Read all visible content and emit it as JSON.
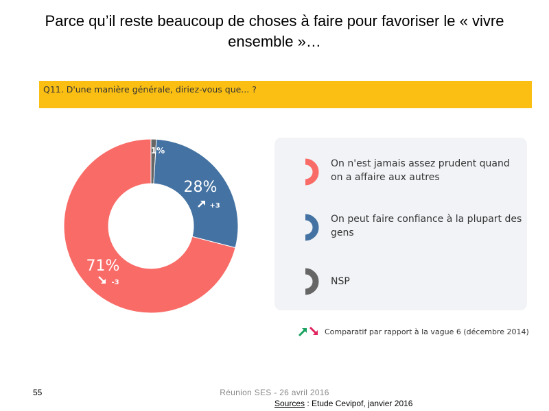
{
  "slide": {
    "title": "Parce qu’il reste beaucoup de choses à faire pour favoriser le « vivre ensemble »…",
    "question": "Q11. D'une manière générale, diriez-vous que... ?"
  },
  "chart_data": {
    "type": "pie",
    "variant": "donut",
    "title": "",
    "categories": [
      "On n'est jamais assez prudent quand on a affaire aux autres",
      "On peut faire confiance à la plupart des gens",
      "NSP"
    ],
    "values": [
      71,
      28,
      1
    ],
    "value_labels": [
      "71%",
      "28%",
      "1%"
    ],
    "changes": [
      "-3",
      "+3",
      ""
    ],
    "colors": [
      "#f96b67",
      "#4472a2",
      "#666666"
    ]
  },
  "legend": {
    "items": [
      {
        "label": "On n'est jamais assez prudent quand on a affaire aux autres",
        "icon": "red-arc-icon"
      },
      {
        "label": "On peut faire confiance à la plupart des gens",
        "icon": "blue-arc-icon"
      },
      {
        "label": "NSP",
        "icon": "gray-arc-icon"
      }
    ]
  },
  "comparison_note": "Comparatif par rapport à la vague 6 (décembre 2014)",
  "footer": {
    "page_number": "55",
    "meeting": "Réunion SES - 26 avril 2016",
    "source_label": "Sources",
    "source_text": " : Etude Cevipof, janvier 2016"
  }
}
